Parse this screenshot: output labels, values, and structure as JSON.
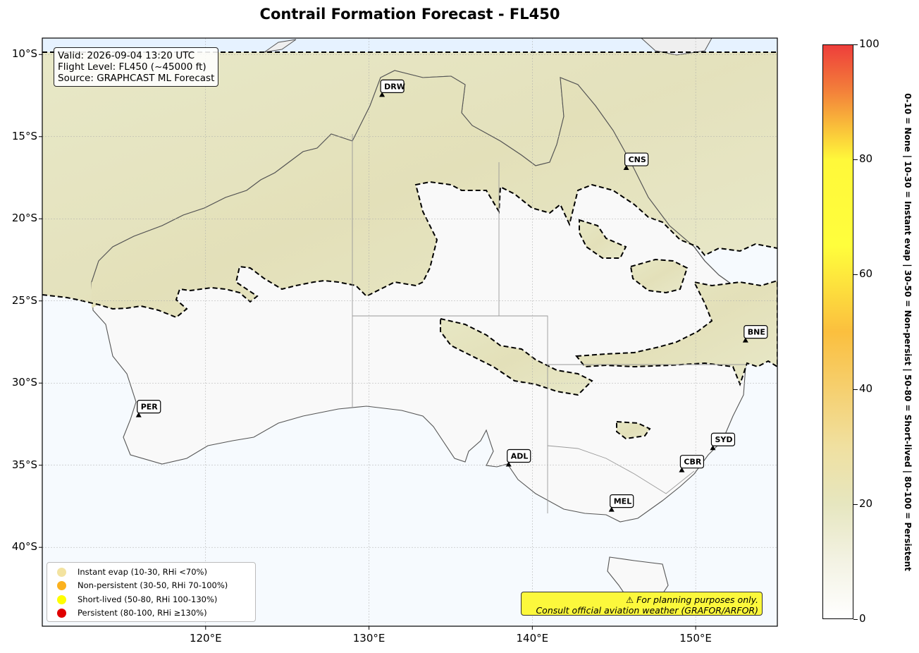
{
  "title": "Contrail Formation Forecast - FL450",
  "info": {
    "valid": "Valid: 2026-09-04 13:20 UTC",
    "flight_level": "Flight Level: FL450 (~45000 ft)",
    "source": "Source: GRAPHCAST ML Forecast"
  },
  "map": {
    "lon_range": [
      110,
      155
    ],
    "lat_range": [
      -44.8,
      -9
    ],
    "lat_ticks": [
      {
        "value": -10,
        "label": "10°S"
      },
      {
        "value": -15,
        "label": "15°S"
      },
      {
        "value": -20,
        "label": "20°S"
      },
      {
        "value": -25,
        "label": "25°S"
      },
      {
        "value": -30,
        "label": "30°S"
      },
      {
        "value": -35,
        "label": "35°S"
      },
      {
        "value": -40,
        "label": "40°S"
      }
    ],
    "lon_ticks": [
      {
        "value": 120,
        "label": "120°E"
      },
      {
        "value": 130,
        "label": "130°E"
      },
      {
        "value": 140,
        "label": "140°E"
      },
      {
        "value": 150,
        "label": "150°E"
      }
    ],
    "airports": [
      {
        "code": "DRW",
        "lon": 130.8,
        "lat": -12.45
      },
      {
        "code": "CNS",
        "lon": 145.75,
        "lat": -16.9
      },
      {
        "code": "BNE",
        "lon": 153.05,
        "lat": -27.4
      },
      {
        "code": "PER",
        "lon": 115.9,
        "lat": -31.95
      },
      {
        "code": "ADL",
        "lon": 138.55,
        "lat": -34.95
      },
      {
        "code": "SYD",
        "lon": 151.05,
        "lat": -33.95
      },
      {
        "code": "CBR",
        "lon": 149.15,
        "lat": -35.3
      },
      {
        "code": "MEL",
        "lon": 144.85,
        "lat": -37.7
      }
    ]
  },
  "legend": [
    {
      "label": "Instant evap (10-30, RHi <70%)",
      "color": "#f3e3a0"
    },
    {
      "label": "Non-persistent (30-50, RHi 70-100%)",
      "color": "#fbb11e"
    },
    {
      "label": "Short-lived (50-80, RHi 100-130%)",
      "color": "#fefe00"
    },
    {
      "label": "Persistent (80-100, RHi ≥130%)",
      "color": "#e00000"
    }
  ],
  "disclaimer": {
    "line1": "⚠ For planning purposes only.",
    "line2": "Consult official aviation weather (GRAFOR/ARFOR)"
  },
  "colorbar": {
    "range": [
      0,
      100
    ],
    "ticks": [
      "0",
      "20",
      "40",
      "60",
      "80",
      "100"
    ],
    "side_label": "0-10 = None  |  10-30 = Instant evap  |  30-50 = Non-persist  |  50-80 = Short-lived  |  80-100 = Persistent"
  }
}
